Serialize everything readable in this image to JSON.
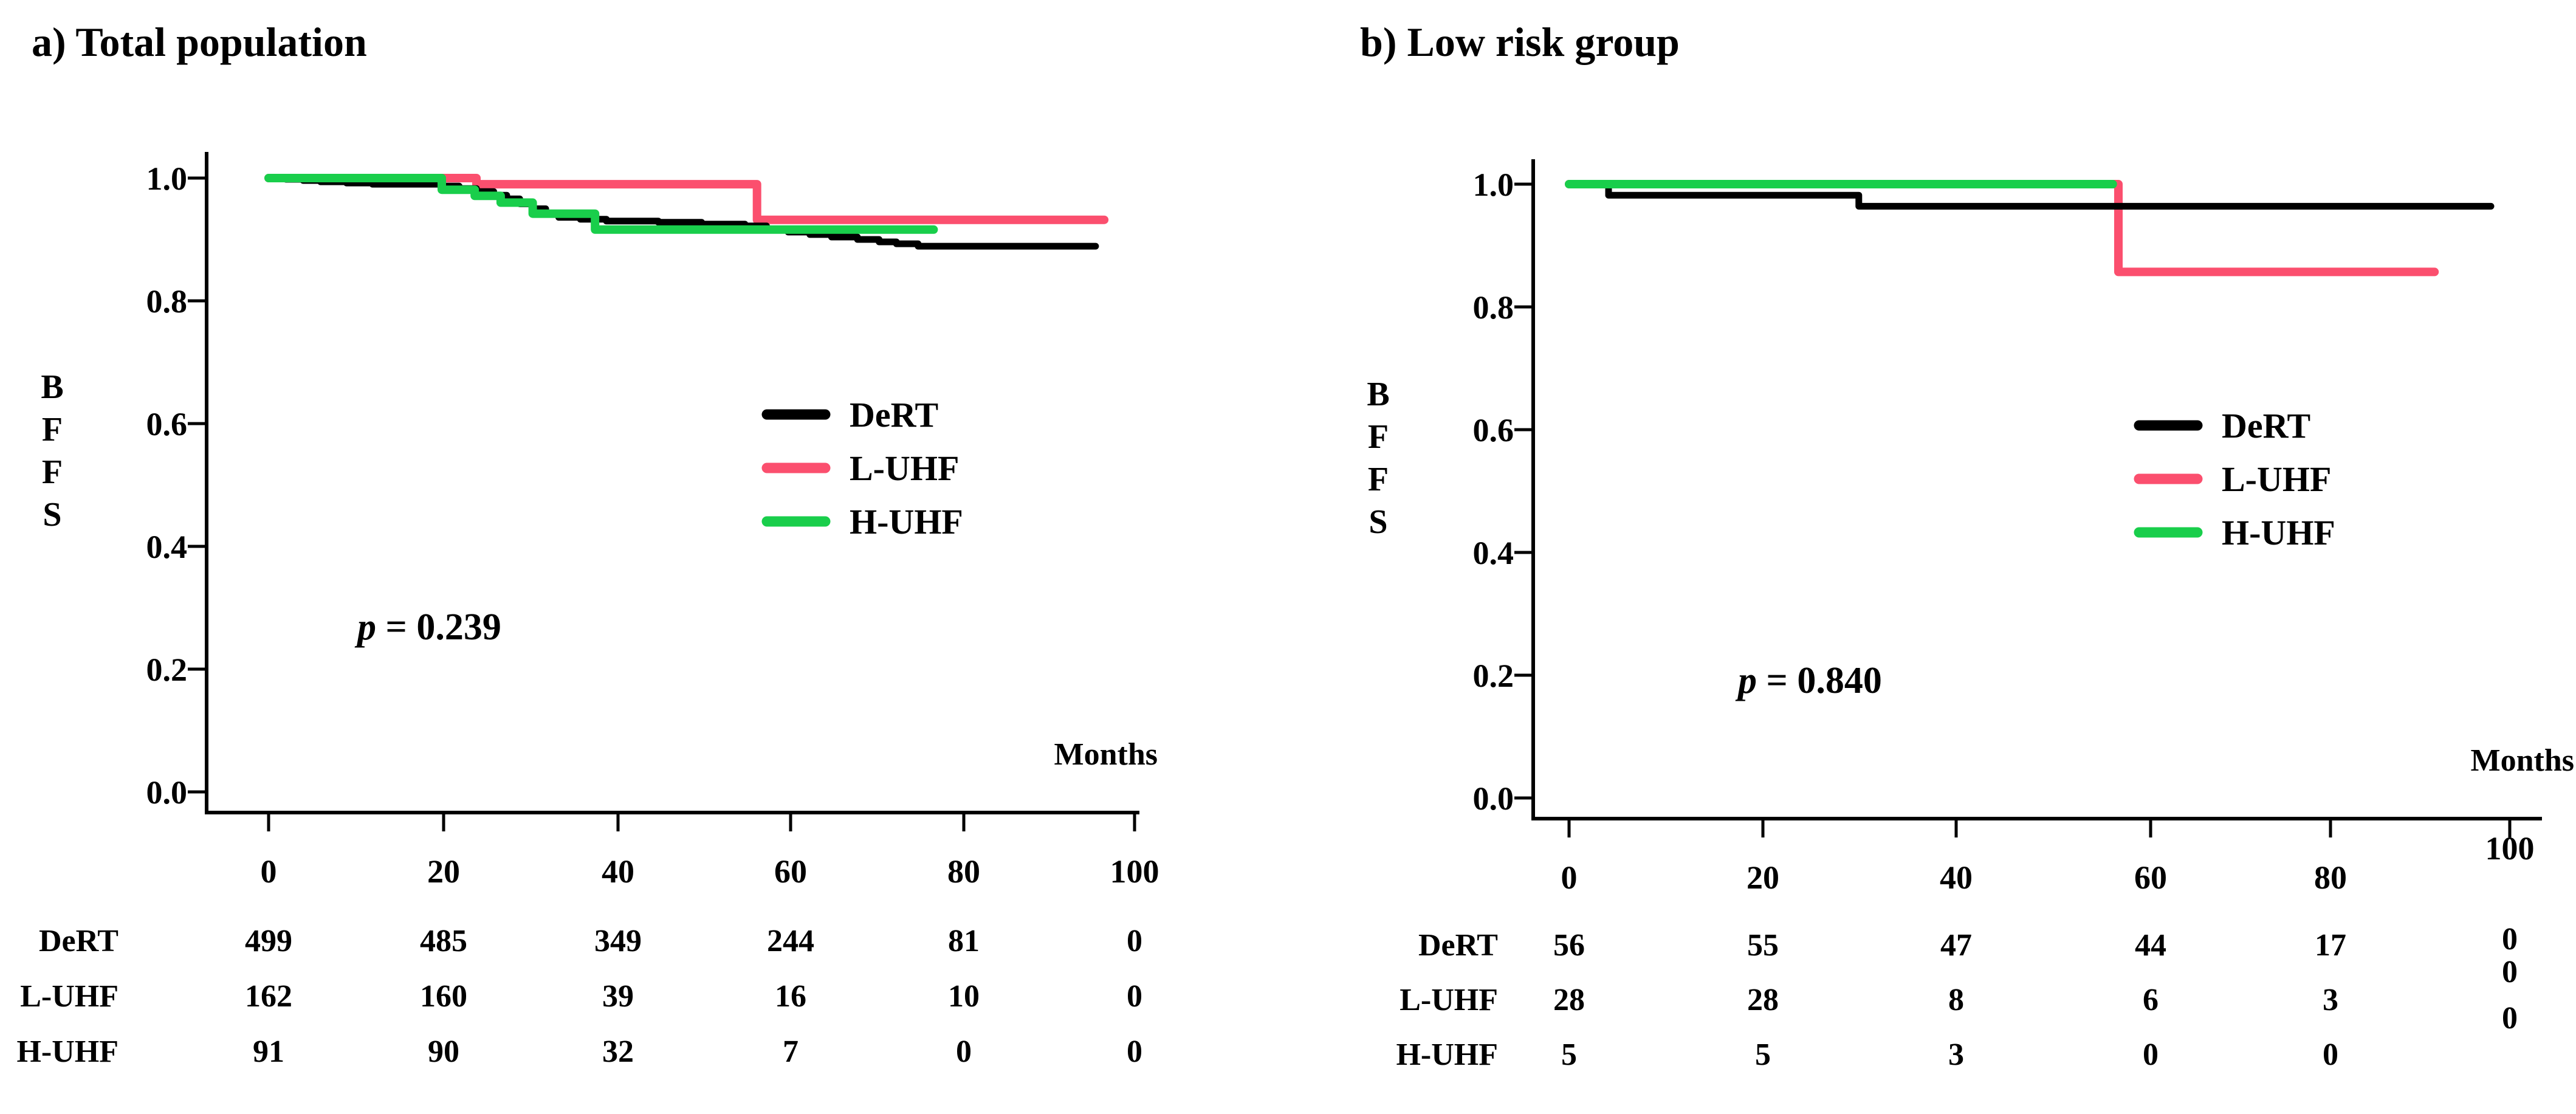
{
  "figure_type": "kaplan-meier-survival-curves",
  "chart_data": [
    {
      "type": "line",
      "panel": "a",
      "title": "a) Total population",
      "xlabel": "Months",
      "ylabel": "BFFS",
      "ylabel_letters": [
        "B",
        "F",
        "F",
        "S"
      ],
      "p_italic": "p",
      "p_rest": "= 0.239",
      "x_ticks": [
        0,
        20,
        40,
        60,
        80,
        100
      ],
      "y_ticks": [
        1.0,
        0.8,
        0.6,
        0.4,
        0.2,
        0.0
      ],
      "xlim": [
        0,
        100
      ],
      "ylim": [
        0.0,
        1.0
      ],
      "grid": false,
      "legend_position": "center-right",
      "legend": [
        "DeRT",
        "L-UHF",
        "H-UHF"
      ],
      "series": [
        {
          "name": "DeRT",
          "color": "#000000",
          "steps": [
            [
              0,
              1.0
            ],
            [
              2,
              0.998
            ],
            [
              4,
              0.996
            ],
            [
              6,
              0.994
            ],
            [
              9,
              0.992
            ],
            [
              12,
              0.99
            ],
            [
              20,
              0.987
            ],
            [
              22,
              0.983
            ],
            [
              24,
              0.978
            ],
            [
              26,
              0.972
            ],
            [
              27.5,
              0.966
            ],
            [
              29,
              0.958
            ],
            [
              30.5,
              0.95
            ],
            [
              32,
              0.942
            ],
            [
              33.5,
              0.936
            ],
            [
              36,
              0.933
            ],
            [
              39,
              0.93
            ],
            [
              45,
              0.928
            ],
            [
              50,
              0.925
            ],
            [
              55,
              0.922
            ],
            [
              57.5,
              0.917
            ],
            [
              60,
              0.912
            ],
            [
              62.5,
              0.908
            ],
            [
              65,
              0.904
            ],
            [
              68,
              0.9
            ],
            [
              70.5,
              0.896
            ],
            [
              72.5,
              0.893
            ],
            [
              75,
              0.889
            ]
          ],
          "end_month": 95.5
        },
        {
          "name": "L-UHF",
          "color": "#FB4F6E",
          "steps": [
            [
              0,
              1.0
            ],
            [
              24,
              0.99
            ],
            [
              56.4,
              0.932
            ]
          ],
          "end_month": 96.5
        },
        {
          "name": "H-UHF",
          "color": "#19CE4B",
          "steps": [
            [
              0,
              1.0
            ],
            [
              20,
              0.981
            ],
            [
              23.8,
              0.971
            ],
            [
              26.8,
              0.96
            ],
            [
              30.5,
              0.942
            ],
            [
              37.7,
              0.916
            ]
          ],
          "end_month": 76.8
        }
      ],
      "risk_table": {
        "row_labels": [
          "DeRT",
          "L-UHF",
          "H-UHF"
        ],
        "columns": [
          0,
          20,
          40,
          60,
          80,
          100
        ],
        "rows": [
          [
            499,
            485,
            349,
            244,
            81,
            0
          ],
          [
            162,
            160,
            39,
            16,
            10,
            0
          ],
          [
            91,
            90,
            32,
            7,
            0,
            0
          ]
        ]
      }
    },
    {
      "type": "line",
      "panel": "b",
      "title": "b) Low risk group",
      "xlabel": "Months",
      "ylabel": "BFFS",
      "ylabel_letters": [
        "B",
        "F",
        "F",
        "S"
      ],
      "p_italic": "p",
      "p_rest": "= 0.840",
      "x_ticks": [
        0,
        20,
        40,
        60,
        80,
        100
      ],
      "y_ticks": [
        1.0,
        0.8,
        0.6,
        0.4,
        0.2,
        0.0
      ],
      "xlim": [
        0,
        100
      ],
      "ylim": [
        0.0,
        1.0
      ],
      "grid": false,
      "legend_position": "center-right",
      "legend": [
        "DeRT",
        "L-UHF",
        "H-UHF"
      ],
      "series": [
        {
          "name": "DeRT",
          "color": "#000000",
          "steps": [
            [
              0,
              1.0
            ],
            [
              4.2,
              0.982
            ],
            [
              30.8,
              0.964
            ]
          ],
          "end_month": 98
        },
        {
          "name": "L-UHF",
          "color": "#FB4F6E",
          "steps": [
            [
              0,
              1.0
            ],
            [
              58.4,
              0.857
            ]
          ],
          "end_month": 92
        },
        {
          "name": "H-UHF",
          "color": "#19CE4B",
          "steps": [
            [
              0,
              1.0
            ]
          ],
          "end_month": 57.8
        }
      ],
      "risk_table": {
        "row_labels": [
          "DeRT",
          "L-UHF",
          "H-UHF"
        ],
        "columns": [
          0,
          20,
          40,
          60,
          80,
          100
        ],
        "rows": [
          [
            56,
            55,
            47,
            44,
            17,
            0
          ],
          [
            28,
            28,
            8,
            6,
            3,
            0
          ],
          [
            5,
            5,
            3,
            0,
            0,
            0
          ]
        ]
      }
    }
  ]
}
